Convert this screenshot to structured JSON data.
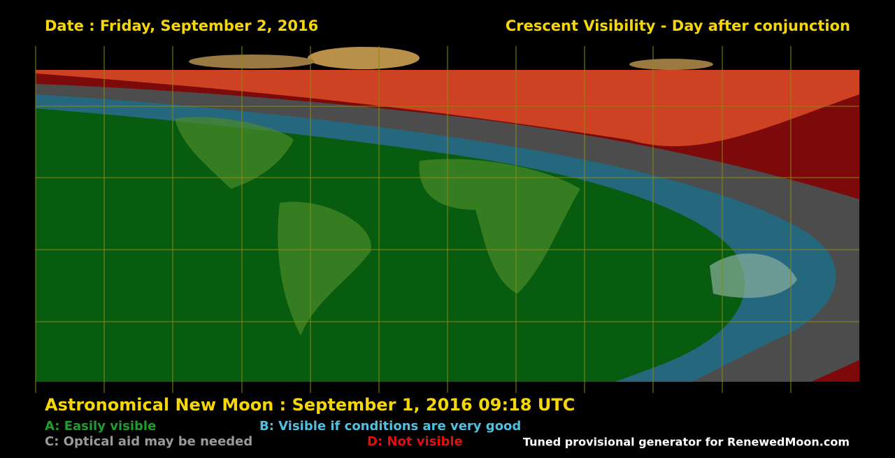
{
  "header": {
    "date": "Date : Friday, September 2, 2016",
    "title": "Crescent Visibility - Day after conjunction"
  },
  "footer": {
    "new_moon": "Astronomical New Moon : September 1, 2016 09:18 UTC",
    "legend": [
      "A: Easily visible",
      "B: Visible if conditions are very good",
      "C: Optical aid may be needed",
      "D: Not visible"
    ],
    "credit": "Tuned provisional generator for RenewedMoon.com"
  }
}
